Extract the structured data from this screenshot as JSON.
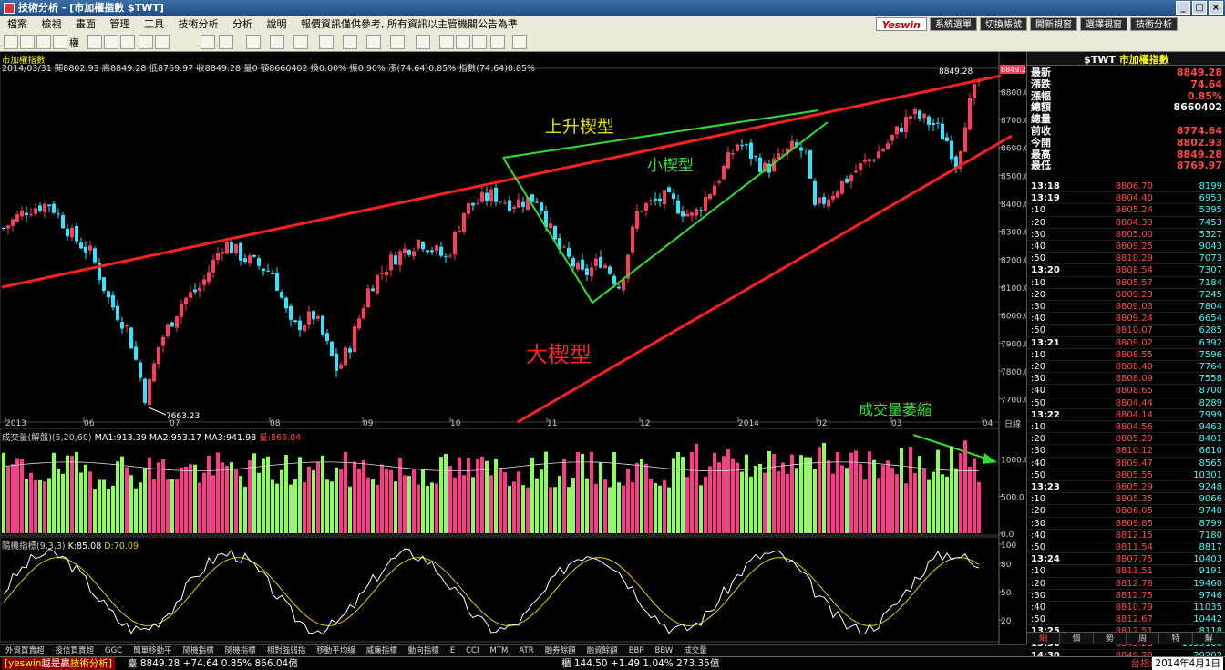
{
  "window": {
    "title": "技術分析 - [市加權指數 $TWT]"
  },
  "menu": [
    "檔案",
    "檢視",
    "畫面",
    "管理",
    "工具",
    "技術分析",
    "分析",
    "說明",
    "報價資訊僅供參考, 所有資訊以主管機關公告為準"
  ],
  "top_buttons": {
    "logo": "Yeswin",
    "items": [
      "系統選單",
      "切換帳號",
      "開新視窗",
      "選擇視窗",
      "技術分析"
    ]
  },
  "toolbar": {
    "period_label": "權"
  },
  "chart": {
    "symbol_label": "市加權指數",
    "info_date": "2014/03/31",
    "info_open": "開8802.93",
    "info_high": "高8849.28",
    "info_low": "低8769.97",
    "info_close": "收8849.28",
    "info_qty": "量0",
    "info_amt": "額8660402",
    "info_turn": "換0.00%",
    "info_amp": "振0.90%",
    "info_chg": "漲(74.64)0.85%",
    "info_idx": "指數(74.64)0.85%",
    "price_last_label": "8849.28",
    "price_low_label": "7663.23",
    "price_axis": [
      "8800.0",
      "8700.0",
      "8600.0",
      "8500.0",
      "8400.0",
      "8300.0",
      "8200.0",
      "8100.0",
      "8000.0",
      "7900.0",
      "7800.0",
      "7700.0"
    ],
    "time_axis": [
      "2013",
      "06",
      "07",
      "08",
      "09",
      "10",
      "11",
      "12",
      "2014",
      "02",
      "03",
      "04"
    ],
    "period_unit": "日線",
    "annotations": {
      "rising_wedge": "上升楔型",
      "small_wedge": "小楔型",
      "big_wedge": "大楔型",
      "volume_shrink": "成交量萎縮"
    },
    "volume_label": "成交量(解盤)(5,20,60)",
    "volume_ma1": "MA1:913.39",
    "volume_ma2": "MA2:953.17",
    "volume_ma3": "MA3:941.98",
    "volume_qty": "量:866.04",
    "volume_axis": [
      "1000.0",
      "500.0",
      "0.0"
    ],
    "kd_label": "隨機指標(9,3,3)",
    "kd_k": "K:85.08",
    "kd_d": "D:70.09",
    "kd_axis": [
      "100",
      "80",
      "50",
      "20"
    ],
    "colors": {
      "up": "#ff3a5a",
      "down": "#2fe6ff",
      "trend": "#ff2020",
      "small_wedge": "#33dd33",
      "kd_k": "#ffffff",
      "kd_d": "#e0d000"
    }
  },
  "indicator_tabs": [
    "外資買賣超",
    "投信買賣超",
    "GGC",
    "簡單移動平",
    "隨機指標",
    "隨機指標",
    "相對強弱指",
    "移動平均線",
    "威廉指標",
    "動向指標",
    "E",
    "CCI",
    "MTM",
    "ATR",
    "融券餘額",
    "融資餘額",
    "BBP",
    "BBW",
    "成交量"
  ],
  "quote": {
    "title_code": "$TWT",
    "title_name": "市加權指數",
    "rows": [
      {
        "k": "最新",
        "v": "8849.28"
      },
      {
        "k": "漲跌",
        "v": "74.64"
      },
      {
        "k": "漲幅",
        "v": "0.85%"
      },
      {
        "k": "總額",
        "v": "8660402"
      },
      {
        "k": "總量",
        "v": ""
      },
      {
        "k": "前收",
        "v": "8774.64"
      },
      {
        "k": "今開",
        "v": "8802.93"
      },
      {
        "k": "最高",
        "v": "8849.28"
      },
      {
        "k": "最低",
        "v": "8769.97"
      }
    ],
    "ticks": [
      {
        "t": "13:18",
        "p": "8806.70",
        "q": "8199"
      },
      {
        "t": "13:19",
        "p": "8804.40",
        "q": "6953"
      },
      {
        "t": ":10",
        "p": "8805.24",
        "q": "5395"
      },
      {
        "t": ":20",
        "p": "8804.33",
        "q": "7453"
      },
      {
        "t": ":30",
        "p": "8805.00",
        "q": "5327"
      },
      {
        "t": ":40",
        "p": "8809.25",
        "q": "9043"
      },
      {
        "t": ":50",
        "p": "8810.29",
        "q": "7073"
      },
      {
        "t": "13:20",
        "p": "8808.54",
        "q": "7307"
      },
      {
        "t": ":10",
        "p": "8805.57",
        "q": "7184"
      },
      {
        "t": ":20",
        "p": "8809.23",
        "q": "7245"
      },
      {
        "t": ":30",
        "p": "8809.03",
        "q": "7804"
      },
      {
        "t": ":40",
        "p": "8809.24",
        "q": "6654"
      },
      {
        "t": ":50",
        "p": "8810.07",
        "q": "6285"
      },
      {
        "t": "13:21",
        "p": "8809.02",
        "q": "6392"
      },
      {
        "t": ":10",
        "p": "8808.55",
        "q": "7596"
      },
      {
        "t": ":20",
        "p": "8808.40",
        "q": "7764"
      },
      {
        "t": ":30",
        "p": "8808.09",
        "q": "7558"
      },
      {
        "t": ":40",
        "p": "8808.65",
        "q": "8700"
      },
      {
        "t": ":50",
        "p": "8804.44",
        "q": "8289"
      },
      {
        "t": "13:22",
        "p": "8804.14",
        "q": "7999"
      },
      {
        "t": ":10",
        "p": "8804.56",
        "q": "9463"
      },
      {
        "t": ":20",
        "p": "8805.29",
        "q": "8401"
      },
      {
        "t": ":30",
        "p": "8810.12",
        "q": "6610"
      },
      {
        "t": ":40",
        "p": "8809.47",
        "q": "8565"
      },
      {
        "t": ":50",
        "p": "8805.55",
        "q": "10301"
      },
      {
        "t": "13:23",
        "p": "8805.29",
        "q": "9248"
      },
      {
        "t": ":10",
        "p": "8805.35",
        "q": "9066"
      },
      {
        "t": ":20",
        "p": "8806.05",
        "q": "9740"
      },
      {
        "t": ":30",
        "p": "8809.85",
        "q": "8799"
      },
      {
        "t": ":40",
        "p": "8812.15",
        "q": "7180"
      },
      {
        "t": ":50",
        "p": "8811.54",
        "q": "8817"
      },
      {
        "t": "13:24",
        "p": "8807.75",
        "q": "10403"
      },
      {
        "t": ":10",
        "p": "8811.51",
        "q": "9191"
      },
      {
        "t": ":20",
        "p": "8812.78",
        "q": "19460"
      },
      {
        "t": ":30",
        "p": "8812.75",
        "q": "9746"
      },
      {
        "t": ":40",
        "p": "8810.79",
        "q": "11035"
      },
      {
        "t": ":50",
        "p": "8812.67",
        "q": "10442"
      },
      {
        "t": "13:25",
        "p": "8812.51",
        "q": "8118"
      },
      {
        "t": "13:30",
        "p": "8849.28",
        "q": "1059166"
      },
      {
        "t": "14:30",
        "p": "8849.28",
        "q": "29202"
      }
    ],
    "tabs": [
      "細",
      "價",
      "勢",
      "周",
      "特",
      "解"
    ]
  },
  "status": {
    "brand": "[yeswin",
    "brand2": "越是贏",
    "brand3": "技術分析]",
    "twse": "臺 8849.28 +74.64 0.85% 866.04億",
    "otc": "櫃 144.50 +1.49 1.04% 273.35億",
    "notice": "台指近",
    "date": "2014年4月1日"
  }
}
